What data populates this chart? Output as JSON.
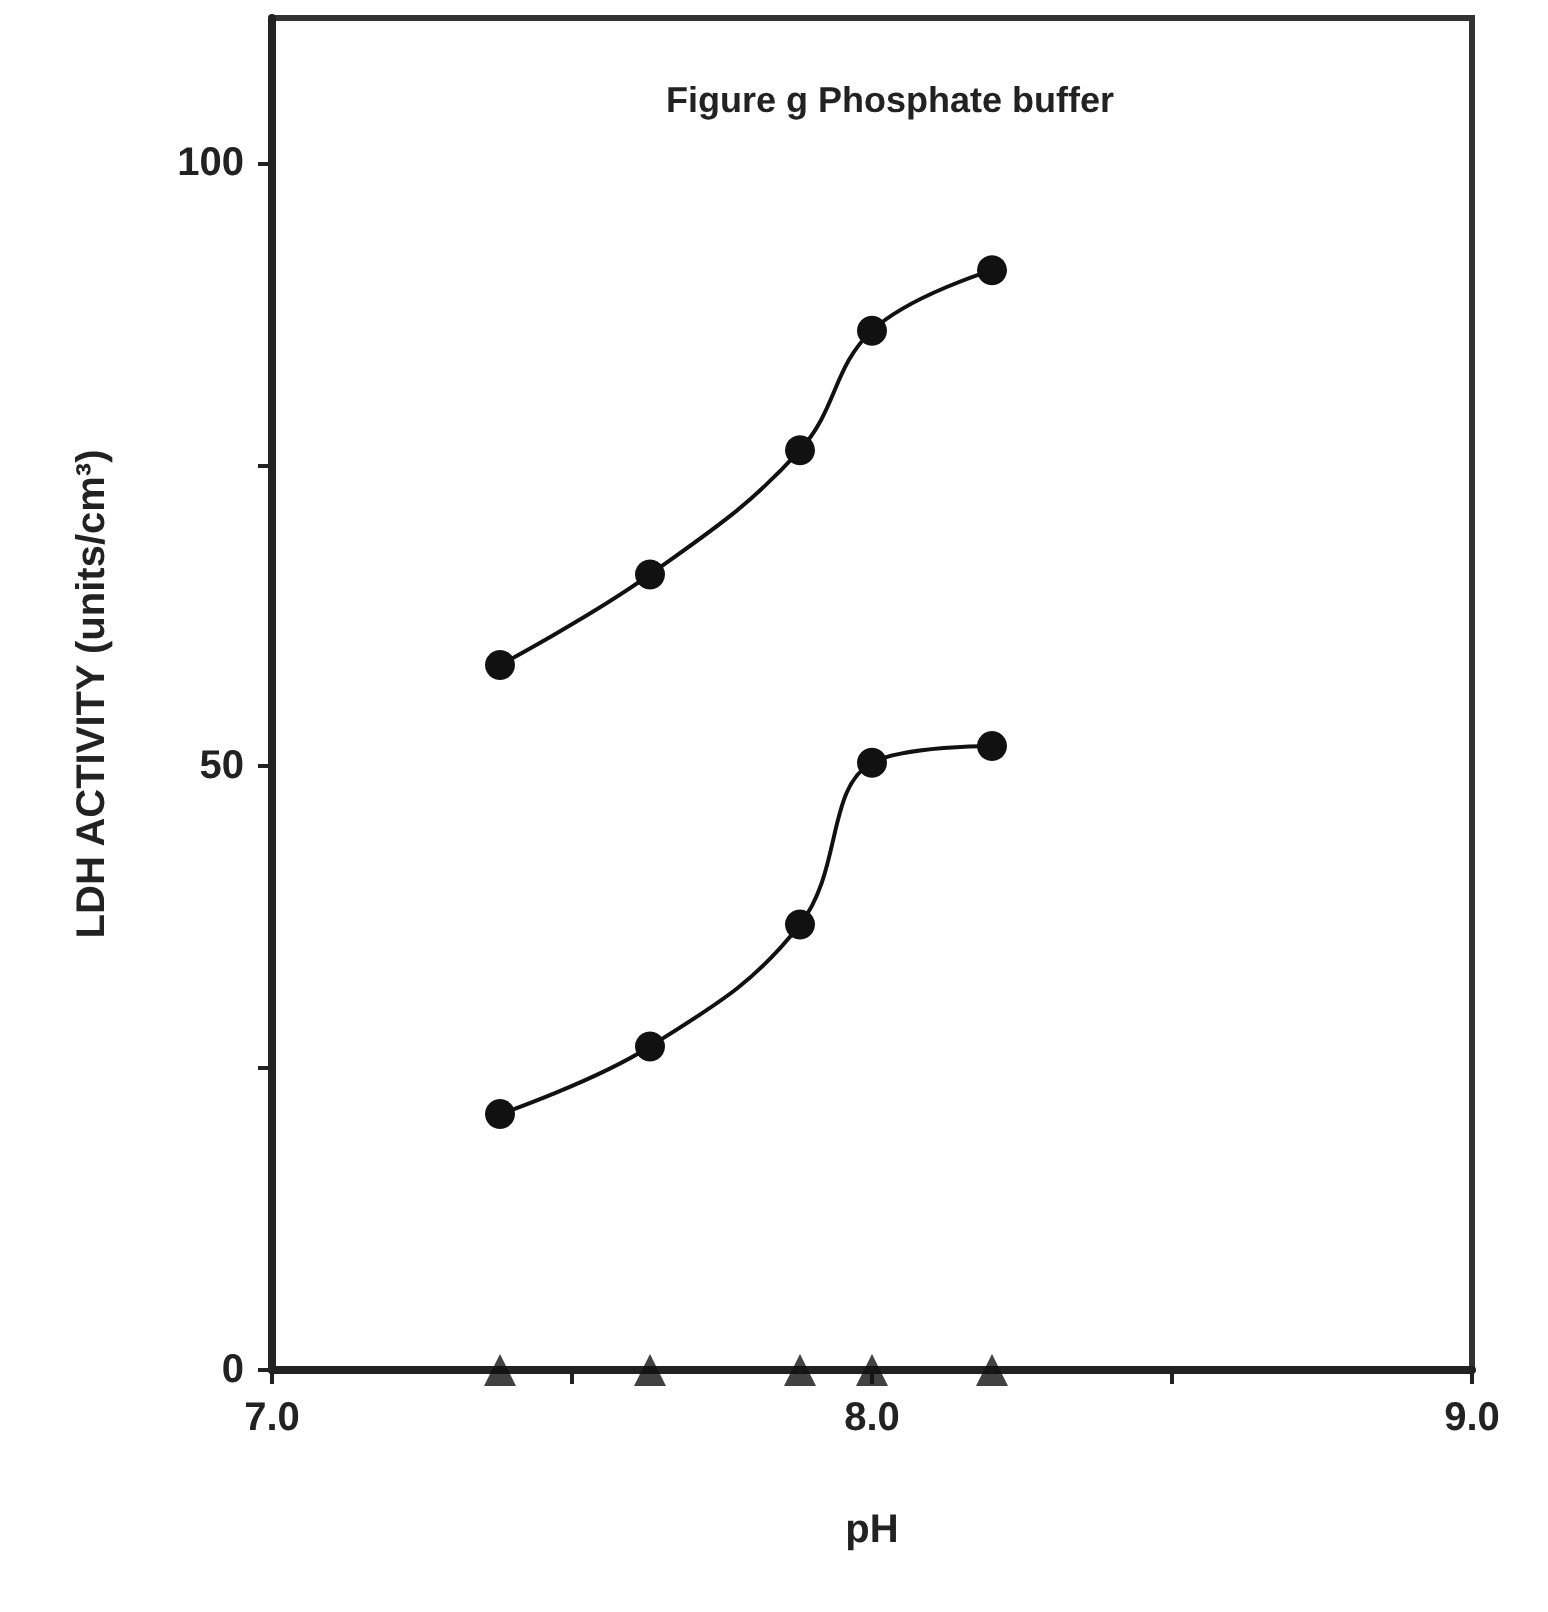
{
  "chart_data": {
    "type": "line",
    "title": "Figure g Phosphate buffer",
    "xlabel": "pH",
    "ylabel": "LDH ACTIVITY (units/cm³)",
    "xlim": [
      7.0,
      9.0
    ],
    "xticks": [
      {
        "value": 7.0,
        "label": "7.0"
      },
      {
        "value": 7.5,
        "label": null
      },
      {
        "value": 8.0,
        "label": "8.0"
      },
      {
        "value": 8.5,
        "label": null
      },
      {
        "value": 9.0,
        "label": "9.0"
      }
    ],
    "ylim": [
      0,
      112
    ],
    "yticks": [
      0,
      {
        "value": 25,
        "label": null
      },
      50,
      {
        "value": 75,
        "label": null
      },
      100
    ],
    "grid": false,
    "line_style": "solid",
    "series": [
      {
        "color": "#111111",
        "marker": "circle",
        "x": [
          7.38,
          7.63,
          7.88,
          8.0,
          8.2
        ],
        "values": [
          58.4,
          65.9,
          76.2,
          86.1,
          91.1
        ]
      },
      {
        "color": "#111111",
        "marker": "circle",
        "x": [
          7.38,
          7.63,
          7.88,
          8.0,
          8.2
        ],
        "values": [
          21.2,
          26.8,
          36.9,
          50.3,
          51.7
        ]
      },
      {
        "type": "scatter",
        "color": "#111111",
        "marker": "triangle",
        "x": [
          7.38,
          7.63,
          7.88,
          8.0,
          8.2
        ],
        "values": [
          0,
          0,
          0,
          0,
          0
        ]
      }
    ]
  }
}
